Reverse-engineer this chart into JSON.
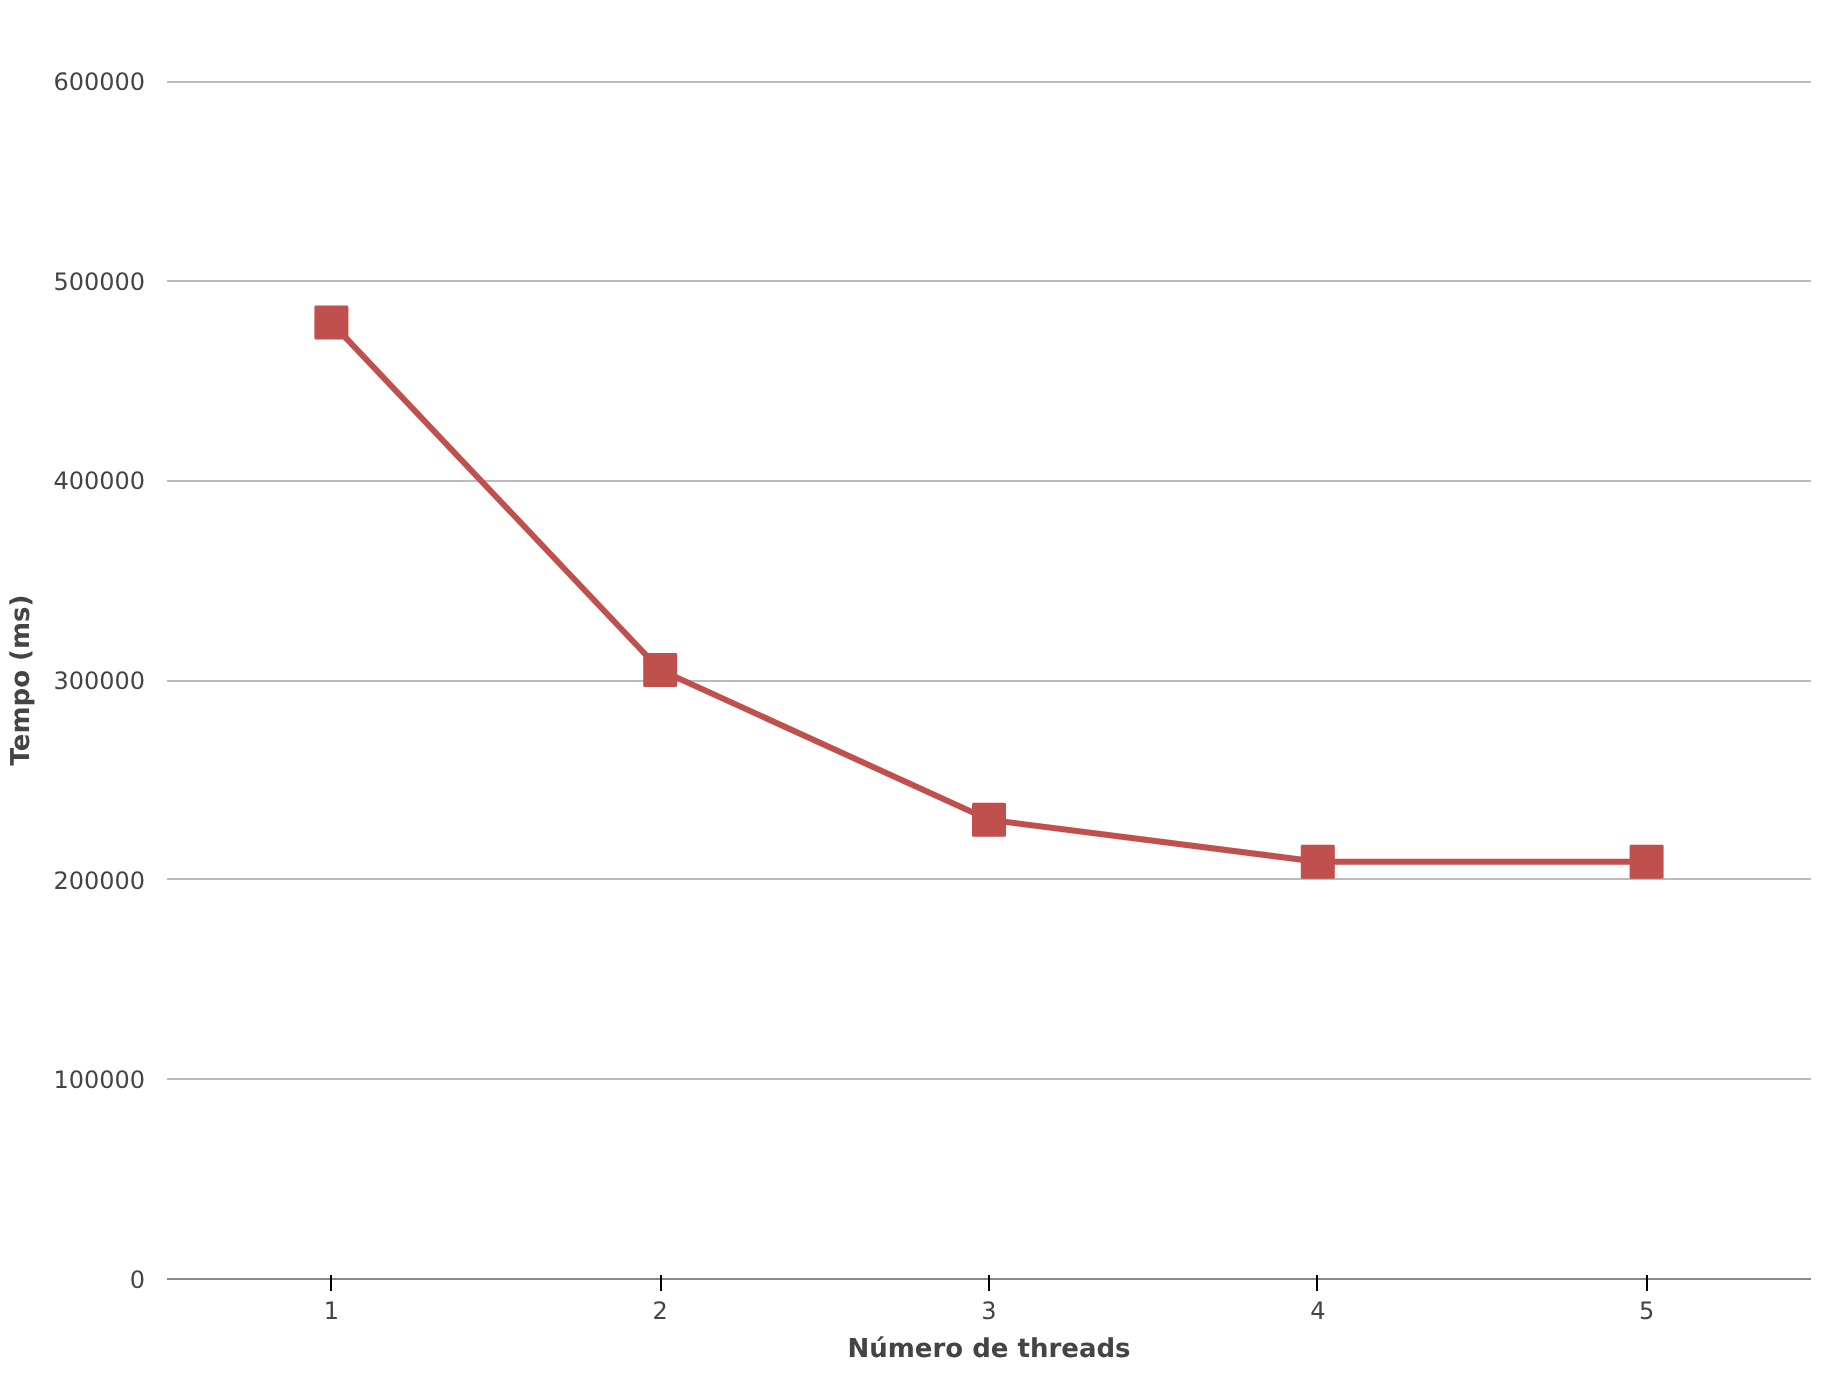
{
  "chart_data": {
    "type": "line",
    "xlabel": "Número de threads",
    "ylabel": "Tempo (ms)",
    "categories": [
      "1",
      "2",
      "3",
      "4",
      "5"
    ],
    "series": [
      {
        "color": "#c0504d",
        "values": [
          479000,
          305000,
          230000,
          209000,
          209000
        ]
      }
    ],
    "ylim": [
      0,
      600000
    ],
    "yticks": [
      0,
      100000,
      200000,
      300000,
      400000,
      500000,
      600000
    ],
    "grid": "y",
    "marker": "square",
    "line_style": "solid"
  }
}
